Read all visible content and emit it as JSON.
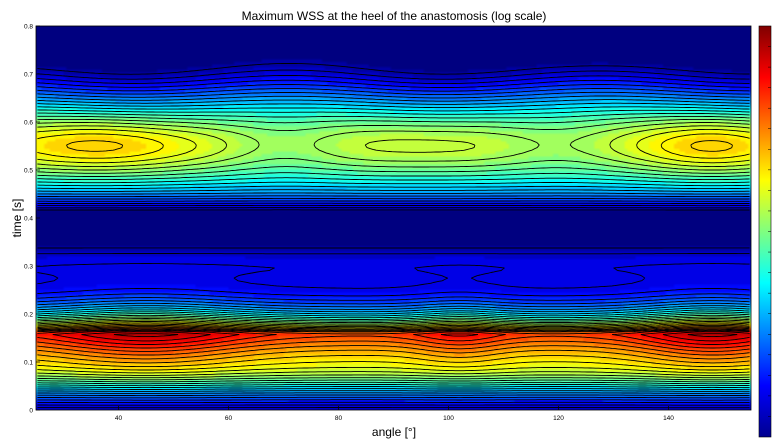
{
  "chart_data": {
    "type": "heatmap",
    "subtype": "filled-contour",
    "title": "Maximum WSS at the heel of the anastomosis (log scale)",
    "xlabel": "angle [°]",
    "ylabel": "time [s]",
    "xlim": [
      25,
      155
    ],
    "ylim": [
      0,
      0.8
    ],
    "x_ticks": [
      "40",
      "60",
      "80",
      "100",
      "120",
      "140"
    ],
    "y_ticks": [
      "0",
      "0.1",
      "0.2",
      "0.3",
      "0.4",
      "0.5",
      "0.6",
      "0.7",
      "0.8"
    ],
    "x_tick_values": [
      40,
      60,
      80,
      100,
      120,
      140
    ],
    "y_tick_values": [
      0,
      0.1,
      0.2,
      0.3,
      0.4,
      0.5,
      0.6,
      0.7,
      0.8
    ],
    "colormap": "jet",
    "colorbar": "right, unlabeled",
    "contour_lines": "black",
    "features": {
      "high_wss_time": 0.16,
      "high_wss_angles": [
        45,
        148
      ],
      "secondary_high_time": 0.55,
      "low_wss_times": [
        0.39,
        0.79
      ],
      "angle_span": [
        25,
        155
      ]
    }
  }
}
